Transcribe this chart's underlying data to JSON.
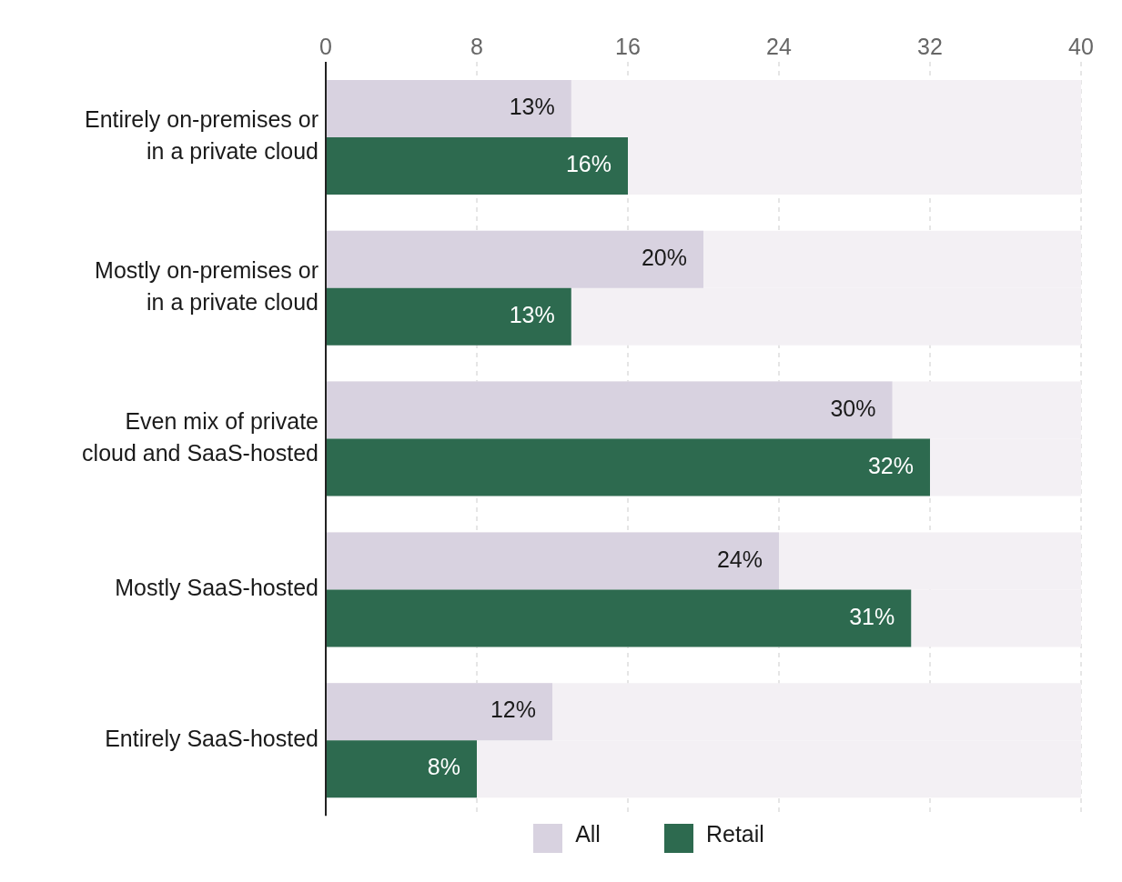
{
  "chart_data": {
    "type": "bar",
    "orientation": "horizontal",
    "categories": [
      "Entirely on-premises or in a private cloud",
      "Mostly on-premises or in a private cloud",
      "Even mix of private cloud and SaaS-hosted",
      "Mostly SaaS-hosted",
      "Entirely SaaS-hosted"
    ],
    "series": [
      {
        "name": "All",
        "color": "#d8d2e0",
        "values": [
          13,
          20,
          30,
          24,
          12
        ],
        "value_labels": [
          "13%",
          "20%",
          "30%",
          "24%",
          "12%"
        ]
      },
      {
        "name": "Retail",
        "color": "#2d6a4f",
        "values": [
          16,
          13,
          32,
          31,
          8
        ],
        "value_labels": [
          "16%",
          "13%",
          "32%",
          "31%",
          "8%"
        ]
      }
    ],
    "xlim": [
      0,
      40
    ],
    "xticks": [
      0,
      8,
      16,
      24,
      32,
      40
    ],
    "grid": "x",
    "legend": "bottom"
  }
}
